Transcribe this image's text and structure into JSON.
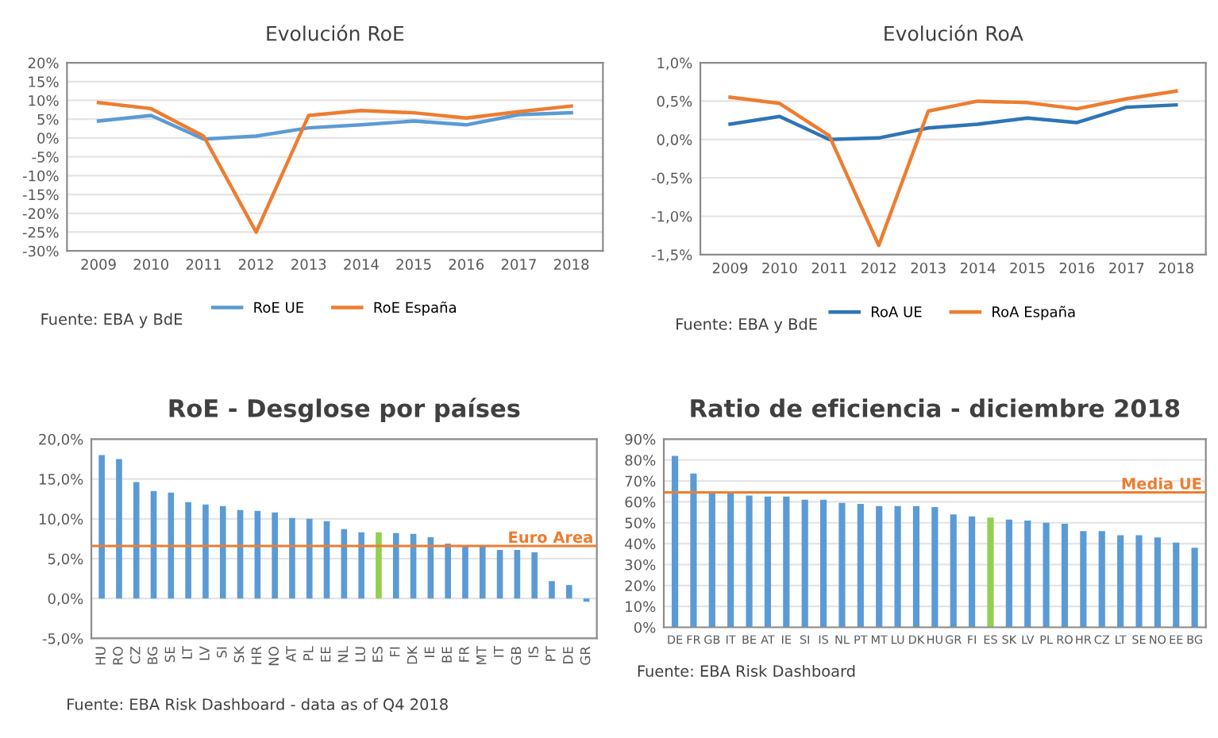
{
  "chart_data": [
    {
      "type": "line",
      "title": "Evolución RoE",
      "categories": [
        "2009",
        "2010",
        "2011",
        "2012",
        "2013",
        "2014",
        "2015",
        "2016",
        "2017",
        "2018"
      ],
      "series": [
        {
          "name": "RoE UE",
          "color": "#5b9bd5",
          "values": [
            4.5,
            6,
            -0.3,
            0.5,
            2.7,
            3.5,
            4.5,
            3.5,
            6.2,
            6.7
          ]
        },
        {
          "name": "RoE España",
          "color": "#ed7d31",
          "values": [
            9.4,
            7.8,
            0.5,
            -25,
            6,
            7.3,
            6.7,
            5.3,
            7,
            8.5
          ]
        }
      ],
      "ylim": [
        -30,
        20
      ],
      "yticks": [
        {
          "value": -30,
          "label": "-30%"
        },
        {
          "value": -25,
          "label": "-25%"
        },
        {
          "value": -20,
          "label": "-20%"
        },
        {
          "value": -15,
          "label": "-15%"
        },
        {
          "value": -10,
          "label": "-10%"
        },
        {
          "value": -5,
          "label": "-5%"
        },
        {
          "value": 0,
          "label": "0%"
        },
        {
          "value": 5,
          "label": "5%"
        },
        {
          "value": 10,
          "label": "10%"
        },
        {
          "value": 15,
          "label": "15%"
        },
        {
          "value": 20,
          "label": "20%"
        }
      ],
      "grid": "y",
      "legend": "bottom",
      "marker": "none",
      "annotations": [
        "Fuente: EBA y BdE"
      ]
    },
    {
      "type": "line",
      "title": "Evolución RoA",
      "categories": [
        "2009",
        "2010",
        "2011",
        "2012",
        "2013",
        "2014",
        "2015",
        "2016",
        "2017",
        "2018"
      ],
      "series": [
        {
          "name": "RoA UE",
          "color": "#2e75b6",
          "values": [
            0.2,
            0.3,
            0.0,
            0.02,
            0.15,
            0.2,
            0.28,
            0.22,
            0.42,
            0.45
          ]
        },
        {
          "name": "RoA España",
          "color": "#ed7d31",
          "values": [
            0.55,
            0.47,
            0.05,
            -1.38,
            0.37,
            0.5,
            0.48,
            0.4,
            0.53,
            0.63
          ]
        }
      ],
      "ylim": [
        -1.5,
        1.0
      ],
      "yticks": [
        {
          "value": -1.5,
          "label": "-1,5%"
        },
        {
          "value": -1.0,
          "label": "-1,0%"
        },
        {
          "value": -0.5,
          "label": "-0,5%"
        },
        {
          "value": 0,
          "label": "0,0%"
        },
        {
          "value": 0.5,
          "label": "0,5%"
        },
        {
          "value": 1.0,
          "label": "1,0%"
        }
      ],
      "grid": "y",
      "legend": "bottom",
      "marker": "none",
      "annotations": [
        "Fuente: EBA y BdE"
      ]
    },
    {
      "type": "bar",
      "title": "RoE - Desglose por países",
      "categories": [
        "HU",
        "RO",
        "CZ",
        "BG",
        "SE",
        "LT",
        "LV",
        "SI",
        "SK",
        "HR",
        "NO",
        "AT",
        "PL",
        "EE",
        "NL",
        "LU",
        "ES",
        "FI",
        "DK",
        "IE",
        "BE",
        "FR",
        "MT",
        "IT",
        "GB",
        "IS",
        "PT",
        "DE",
        "GR"
      ],
      "values": [
        18.0,
        17.5,
        14.6,
        13.5,
        13.3,
        12.1,
        11.8,
        11.6,
        11.1,
        11.0,
        10.8,
        10.1,
        10.0,
        9.7,
        8.7,
        8.3,
        8.3,
        8.2,
        8.1,
        7.7,
        6.9,
        6.6,
        6.6,
        6.1,
        6.1,
        5.8,
        2.2,
        1.7,
        -0.4
      ],
      "colors": [
        "#5b9bd5",
        "#5b9bd5",
        "#5b9bd5",
        "#5b9bd5",
        "#5b9bd5",
        "#5b9bd5",
        "#5b9bd5",
        "#5b9bd5",
        "#5b9bd5",
        "#5b9bd5",
        "#5b9bd5",
        "#5b9bd5",
        "#5b9bd5",
        "#5b9bd5",
        "#5b9bd5",
        "#5b9bd5",
        "#92d050",
        "#5b9bd5",
        "#5b9bd5",
        "#5b9bd5",
        "#5b9bd5",
        "#5b9bd5",
        "#5b9bd5",
        "#5b9bd5",
        "#5b9bd5",
        "#5b9bd5",
        "#5b9bd5",
        "#5b9bd5",
        "#5b9bd5"
      ],
      "ylim": [
        -5,
        20
      ],
      "yticks": [
        {
          "value": -5,
          "label": "-5,0%"
        },
        {
          "value": 0,
          "label": "0,0%"
        },
        {
          "value": 5,
          "label": "5,0%"
        },
        {
          "value": 10,
          "label": "10,0%"
        },
        {
          "value": 15,
          "label": "15,0%"
        },
        {
          "value": 20,
          "label": "20,0%"
        }
      ],
      "grid": "y",
      "ref_lines": [
        {
          "axis": "y",
          "value": 6.6,
          "label": "Euro Area",
          "color": "#ed7d31"
        }
      ],
      "annotations": [
        "Fuente: EBA Risk Dashboard - data as of Q4 2018"
      ]
    },
    {
      "type": "bar",
      "title": "Ratio de eficiencia - diciembre 2018",
      "categories": [
        "DE",
        "FR",
        "GB",
        "IT",
        "BE",
        "AT",
        "IE",
        "SI",
        "IS",
        "NL",
        "PT",
        "MT",
        "LU",
        "DK",
        "HU",
        "GR",
        "FI",
        "ES",
        "SK",
        "LV",
        "PL",
        "RO",
        "HR",
        "CZ",
        "LT",
        "SE",
        "NO",
        "EE",
        "BG"
      ],
      "values": [
        82,
        73.5,
        64,
        64,
        63,
        62.5,
        62.5,
        61,
        61,
        59.5,
        59,
        58,
        58,
        58,
        57.5,
        54,
        53,
        52.5,
        51.5,
        51,
        50,
        49.5,
        46,
        46,
        44,
        44,
        43,
        40.5,
        38
      ],
      "colors": [
        "#5b9bd5",
        "#5b9bd5",
        "#5b9bd5",
        "#5b9bd5",
        "#5b9bd5",
        "#5b9bd5",
        "#5b9bd5",
        "#5b9bd5",
        "#5b9bd5",
        "#5b9bd5",
        "#5b9bd5",
        "#5b9bd5",
        "#5b9bd5",
        "#5b9bd5",
        "#5b9bd5",
        "#5b9bd5",
        "#5b9bd5",
        "#92d050",
        "#5b9bd5",
        "#5b9bd5",
        "#5b9bd5",
        "#5b9bd5",
        "#5b9bd5",
        "#5b9bd5",
        "#5b9bd5",
        "#5b9bd5",
        "#5b9bd5",
        "#5b9bd5",
        "#5b9bd5"
      ],
      "ylim": [
        0,
        90
      ],
      "yticks": [
        {
          "value": 0,
          "label": "0%"
        },
        {
          "value": 10,
          "label": "10%"
        },
        {
          "value": 20,
          "label": "20%"
        },
        {
          "value": 30,
          "label": "30%"
        },
        {
          "value": 40,
          "label": "40%"
        },
        {
          "value": 50,
          "label": "50%"
        },
        {
          "value": 60,
          "label": "60%"
        },
        {
          "value": 70,
          "label": "70%"
        },
        {
          "value": 80,
          "label": "80%"
        },
        {
          "value": 90,
          "label": "90%"
        }
      ],
      "grid": "y",
      "ref_lines": [
        {
          "axis": "y",
          "value": 64.5,
          "label": "Media UE",
          "color": "#ed7d31"
        }
      ],
      "annotations": [
        "Fuente: EBA Risk Dashboard"
      ]
    }
  ]
}
